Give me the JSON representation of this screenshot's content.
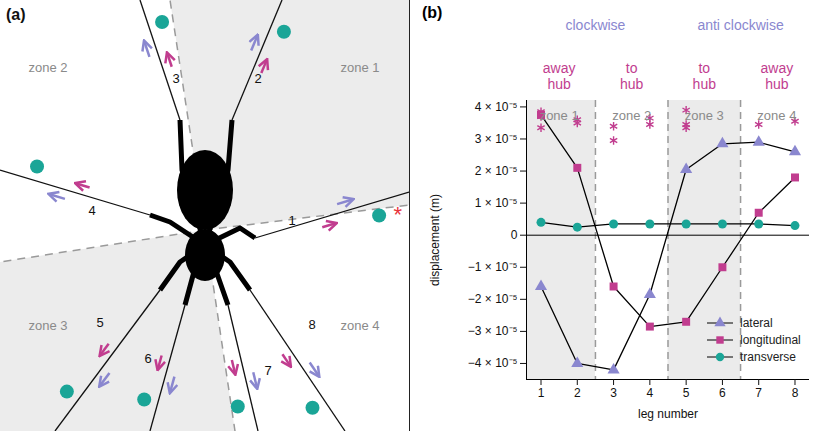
{
  "panel_a": {
    "letter": "(a)",
    "zones": [
      "zone 1",
      "zone 2",
      "zone 3",
      "zone 4"
    ],
    "legs": [
      "1",
      "2",
      "3",
      "4",
      "5",
      "6",
      "7",
      "8"
    ],
    "annotation": {
      "text": "*",
      "color": "#e8343a"
    }
  },
  "chart_data": {
    "type": "line",
    "panel_label": "(b)",
    "x": [
      1,
      2,
      3,
      4,
      5,
      6,
      7,
      8
    ],
    "xlim": [
      0.6,
      8.4
    ],
    "xticks": [
      1,
      2,
      3,
      4,
      5,
      6,
      7,
      8
    ],
    "x_label": "leg number",
    "y_label": "displacement (m)",
    "ylim": [
      -4.5e-05,
      4.2e-05
    ],
    "yticks": [
      {
        "value": -4e-05,
        "label": "−4 × 10⁻⁵"
      },
      {
        "value": -3e-05,
        "label": "−3 × 10⁻⁵"
      },
      {
        "value": -2e-05,
        "label": "−2 × 10⁻⁵"
      },
      {
        "value": -1e-05,
        "label": "−1 × 10⁻⁵"
      },
      0,
      {
        "value": 1e-05,
        "label": "1 × 10⁻⁵"
      },
      {
        "value": 2e-05,
        "label": "2 × 10⁻⁵"
      },
      {
        "value": 3e-05,
        "label": "3 × 10⁻⁵"
      },
      {
        "value": 4e-05,
        "label": "4 × 10⁻⁵"
      }
    ],
    "series": [
      {
        "name": "lateral",
        "color": "#8a87cf",
        "marker": "triangle",
        "values": [
          -1.6e-05,
          -4e-05,
          -4.2e-05,
          -1.85e-05,
          2.05e-05,
          2.85e-05,
          2.9e-05,
          2.6e-05
        ]
      },
      {
        "name": "longitudinal",
        "color": "#c13d8f",
        "marker": "square",
        "values": [
          3.75e-05,
          2.1e-05,
          -1.6e-05,
          -2.85e-05,
          -2.7e-05,
          -1e-05,
          7e-06,
          1.8e-05
        ]
      },
      {
        "name": "transverse",
        "color": "#1aa597",
        "marker": "circle",
        "values": [
          4e-06,
          2.5e-06,
          3.5e-06,
          3.5e-06,
          3.5e-06,
          3.5e-06,
          3.5e-06,
          3e-06
        ]
      }
    ],
    "markers": {
      "color": "#c13d8f",
      "marker": "asterisk",
      "x": [
        1,
        1,
        1,
        2,
        2,
        3,
        3,
        4,
        4,
        5,
        5,
        5,
        7,
        8
      ],
      "y": [
        3.85e-05,
        3.7e-05,
        3.35e-05,
        3.6e-05,
        3.5e-05,
        3.4e-05,
        2.95e-05,
        3.65e-05,
        3.45e-05,
        3.9e-05,
        3.45e-05,
        3.35e-05,
        3.45e-05,
        3.55e-05
      ]
    },
    "groups": [
      {
        "label": "clockwise",
        "legs": [
          1,
          4
        ],
        "color": "#8a87cf"
      },
      {
        "label": "anti clockwise",
        "legs": [
          5,
          8
        ],
        "color": "#8a87cf"
      }
    ],
    "subgroups": [
      {
        "label": "away hub",
        "legs": [
          1,
          2
        ],
        "color": "#c13d8f"
      },
      {
        "label": "to hub",
        "legs": [
          3,
          4
        ],
        "color": "#c13d8f"
      },
      {
        "label": "to hub",
        "legs": [
          5,
          6
        ],
        "color": "#c13d8f"
      },
      {
        "label": "away hub",
        "legs": [
          7,
          8
        ],
        "color": "#c13d8f"
      }
    ],
    "zones": [
      {
        "label": "zone 1",
        "legs": [
          1,
          2
        ],
        "shaded": true
      },
      {
        "label": "zone 2",
        "legs": [
          3,
          4
        ],
        "shaded": false
      },
      {
        "label": "zone 3",
        "legs": [
          5,
          6
        ],
        "shaded": true
      },
      {
        "label": "zone 4",
        "legs": [
          7,
          8
        ],
        "shaded": false
      }
    ],
    "legend": "bottom right",
    "grid": false
  }
}
